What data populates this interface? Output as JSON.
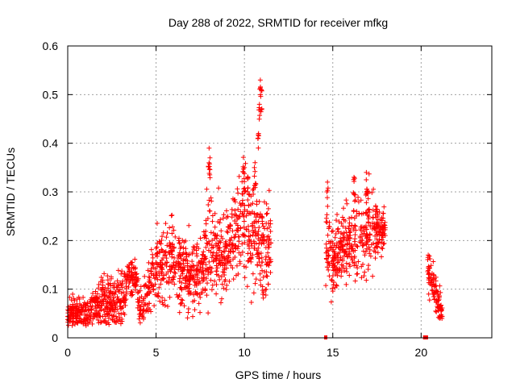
{
  "chart_data": {
    "type": "scatter",
    "title": "Day 288 of 2022, SRMTID for receiver mfkg",
    "xlabel": "GPS time / hours",
    "ylabel": "SRMTID / TECUs",
    "xlim": [
      0,
      24
    ],
    "ylim": [
      0,
      0.6
    ],
    "xticks": [
      0,
      5,
      10,
      15,
      20
    ],
    "yticks": [
      0,
      0.1,
      0.2,
      0.3,
      0.4,
      0.5,
      0.6
    ],
    "xtick_labels": [
      "0",
      "5",
      "10",
      "15",
      "20"
    ],
    "ytick_labels": [
      "0",
      "0.1",
      "0.2",
      "0.3",
      "0.4",
      "0.5",
      "0.6"
    ],
    "grid": true,
    "marker": "+",
    "series_color": "#ff0000",
    "series": [
      {
        "name": "SRMTID",
        "note": "dense point cloud; envelope of observed values per segment (hours, TECU)",
        "segments": [
          {
            "x": [
              0.0,
              11.5
            ],
            "profile": [
              [
                0.0,
                0.04,
                0.02
              ],
              [
                0.5,
                0.05,
                0.02
              ],
              [
                1.0,
                0.05,
                0.02
              ],
              [
                1.5,
                0.06,
                0.02
              ],
              [
                2.0,
                0.07,
                0.03
              ],
              [
                2.5,
                0.08,
                0.03
              ],
              [
                3.0,
                0.07,
                0.03
              ],
              [
                3.5,
                0.13,
                0.02
              ],
              [
                3.8,
                0.12,
                0.02
              ],
              [
                4.2,
                0.06,
                0.02
              ],
              [
                4.6,
                0.1,
                0.03
              ],
              [
                5.0,
                0.15,
                0.04
              ],
              [
                5.5,
                0.15,
                0.04
              ],
              [
                6.0,
                0.17,
                0.05
              ],
              [
                6.5,
                0.14,
                0.04
              ],
              [
                7.0,
                0.13,
                0.04
              ],
              [
                7.5,
                0.13,
                0.04
              ],
              [
                8.0,
                0.18,
                0.06
              ],
              [
                8.5,
                0.17,
                0.05
              ],
              [
                9.0,
                0.18,
                0.05
              ],
              [
                9.5,
                0.21,
                0.06
              ],
              [
                10.0,
                0.26,
                0.07
              ],
              [
                10.5,
                0.22,
                0.07
              ],
              [
                11.0,
                0.18,
                0.06
              ],
              [
                11.5,
                0.2,
                0.05
              ]
            ]
          },
          {
            "x": [
              14.6,
              18.0
            ],
            "profile": [
              [
                14.6,
                0.2,
                0.05
              ],
              [
                15.0,
                0.15,
                0.04
              ],
              [
                15.5,
                0.18,
                0.04
              ],
              [
                16.0,
                0.21,
                0.05
              ],
              [
                16.5,
                0.22,
                0.05
              ],
              [
                17.0,
                0.21,
                0.05
              ],
              [
                17.5,
                0.22,
                0.04
              ],
              [
                18.0,
                0.23,
                0.02
              ]
            ]
          },
          {
            "x": [
              20.4,
              21.2
            ],
            "profile": [
              [
                20.4,
                0.14,
                0.03
              ],
              [
                20.7,
                0.1,
                0.02
              ],
              [
                21.0,
                0.07,
                0.02
              ],
              [
                21.2,
                0.05,
                0.01
              ]
            ]
          }
        ],
        "spikes": [
          [
            8.0,
            0.39
          ],
          [
            8.05,
            0.37
          ],
          [
            10.0,
            0.35
          ],
          [
            10.2,
            0.33
          ],
          [
            10.6,
            0.36
          ],
          [
            10.8,
            0.42
          ],
          [
            10.85,
            0.48
          ],
          [
            10.9,
            0.53
          ],
          [
            10.95,
            0.51
          ],
          [
            14.7,
            0.32
          ],
          [
            16.2,
            0.33
          ],
          [
            16.9,
            0.34
          ],
          [
            17.0,
            0.3
          ],
          [
            20.4,
            0.17
          ]
        ]
      }
    ],
    "markers_on_axis": [
      14.6,
      20.2,
      20.3
    ]
  }
}
